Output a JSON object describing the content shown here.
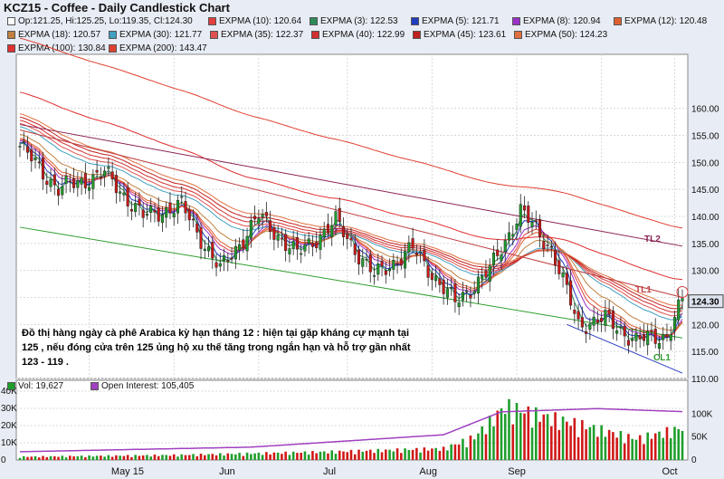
{
  "title": "KCZ15 - Coffee - Daily Candlestick Chart",
  "ohlc_legend": "Op:121.25, Hi:125.25, Lo:119.35, Cl:124.30",
  "annotation": "Đồ thị hàng ngày cà phê Arabica kỳ hạn tháng 12 : hiện tại gặp kháng cự mạnh tại 125 , nếu đóng cửa trên 125 ủng hộ xu thế tăng trong ngắn hạn và hỗ trợ gần nhất 123 - 119 .",
  "trendline_labels": {
    "tl2": "TL2",
    "tl1": "TL1",
    "cl1": "CL1"
  },
  "colors": {
    "up": "#1f9e2c",
    "down": "#d01818",
    "panel_bg": "#ffffff",
    "grid": "#d8d8d8",
    "oi": "#a040c0",
    "price_box": "#dde3ee"
  },
  "chart_data": [
    {
      "type": "candlestick",
      "title": "KCZ15 - Coffee - Daily Candlestick Chart",
      "ylim": [
        110,
        170
      ],
      "y_ticks": [
        "110.00",
        "115.00",
        "120.00",
        "125.00",
        "130.00",
        "135.00",
        "140.00",
        "145.00",
        "150.00",
        "155.00",
        "160.00"
      ],
      "x_ticks": [
        "May 15",
        "Jun",
        "Jul",
        "Aug",
        "Sep",
        "Oct"
      ],
      "last_price": "124.30",
      "close_path": [
        {
          "d": 0,
          "v": 153
        },
        {
          "d": 10,
          "v": 145
        },
        {
          "d": 22,
          "v": 148
        },
        {
          "d": 32,
          "v": 140
        },
        {
          "d": 42,
          "v": 142
        },
        {
          "d": 52,
          "v": 130
        },
        {
          "d": 62,
          "v": 140
        },
        {
          "d": 72,
          "v": 133
        },
        {
          "d": 82,
          "v": 139
        },
        {
          "d": 92,
          "v": 129
        },
        {
          "d": 102,
          "v": 134
        },
        {
          "d": 113,
          "v": 124
        },
        {
          "d": 122,
          "v": 130
        },
        {
          "d": 130,
          "v": 141
        },
        {
          "d": 138,
          "v": 134
        },
        {
          "d": 145,
          "v": 120
        },
        {
          "d": 152,
          "v": 121
        },
        {
          "d": 160,
          "v": 117
        },
        {
          "d": 168,
          "v": 118
        },
        {
          "d": 172,
          "v": 124.3
        }
      ],
      "ema_series": [
        {
          "name": "EXPMA (3): 122.53",
          "color": "#2e8b57"
        },
        {
          "name": "EXPMA (5): 121.71",
          "color": "#1f3fbf"
        },
        {
          "name": "EXPMA (8): 120.94",
          "color": "#9b30c8"
        },
        {
          "name": "EXPMA (10): 120.64",
          "color": "#e04040"
        },
        {
          "name": "EXPMA (12): 120.48",
          "color": "#e06030"
        },
        {
          "name": "EXPMA (18): 120.57",
          "color": "#c08040"
        },
        {
          "name": "EXPMA (30): 121.77",
          "color": "#40a0c0"
        },
        {
          "name": "EXPMA (35): 122.37",
          "color": "#e05050"
        },
        {
          "name": "EXPMA (40): 122.99",
          "color": "#d03030"
        },
        {
          "name": "EXPMA (45): 123.61",
          "color": "#c02020"
        },
        {
          "name": "EXPMA (50): 124.23",
          "color": "#e07040"
        },
        {
          "name": "EXPMA (100): 130.84",
          "color": "#e03030"
        },
        {
          "name": "EXPMA (200): 143.47",
          "color": "#e04030"
        }
      ],
      "trendlines": [
        {
          "label": "TL2",
          "from": [
            0,
            157
          ],
          "to": [
            172,
            134.5
          ],
          "color": "#8b2252"
        },
        {
          "label": "TL1",
          "from": [
            0,
            156
          ],
          "to": [
            172,
            125
          ],
          "color": "#c04040"
        },
        {
          "label": "CL1",
          "from": [
            0,
            138
          ],
          "to": [
            172,
            117.5
          ],
          "color": "#2e9e2e"
        },
        {
          "label": "",
          "from": [
            142,
            120
          ],
          "to": [
            172,
            111
          ],
          "color": "#3040c0"
        }
      ]
    },
    {
      "type": "bar",
      "legend": [
        "Vol: 19,627",
        "Open Interest: 105,405"
      ],
      "y_left_ticks": [
        "0",
        "10K",
        "20K",
        "30K",
        "40K"
      ],
      "y_right_ticks": [
        "0",
        "50K",
        "100K"
      ],
      "volume_path": [
        {
          "d": 0,
          "v": 2
        },
        {
          "d": 40,
          "v": 3
        },
        {
          "d": 80,
          "v": 5
        },
        {
          "d": 110,
          "v": 7
        },
        {
          "d": 118,
          "v": 14
        },
        {
          "d": 126,
          "v": 33
        },
        {
          "d": 134,
          "v": 28
        },
        {
          "d": 145,
          "v": 22
        },
        {
          "d": 160,
          "v": 13
        },
        {
          "d": 172,
          "v": 19.6
        }
      ],
      "oi_path": [
        {
          "d": 0,
          "v": 18
        },
        {
          "d": 60,
          "v": 28
        },
        {
          "d": 110,
          "v": 55
        },
        {
          "d": 125,
          "v": 105
        },
        {
          "d": 150,
          "v": 112
        },
        {
          "d": 172,
          "v": 105.4
        }
      ]
    }
  ]
}
